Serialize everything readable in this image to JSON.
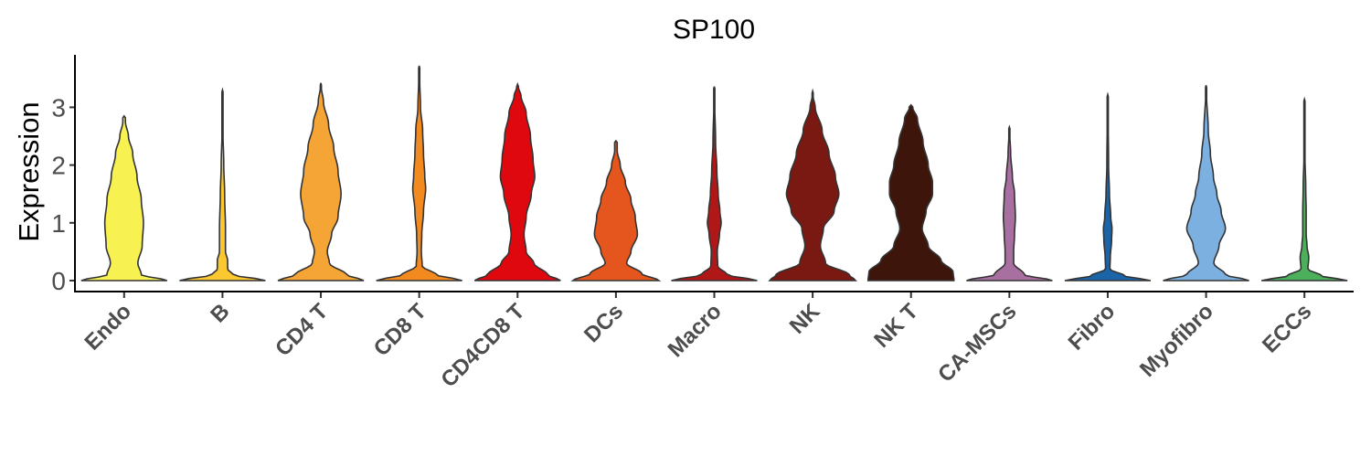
{
  "chart_data": {
    "type": "violin",
    "title": "SP100",
    "xlabel": "",
    "ylabel": "Expression",
    "ylim": [
      -0.2,
      3.8
    ],
    "yticks": [
      "0",
      "1",
      "2",
      "3"
    ],
    "grid": false,
    "legend": "none",
    "categories": [
      "Endo",
      "B",
      "CD4 T",
      "CD8 T",
      "CD4CD8 T",
      "DCs",
      "Macro",
      "NK",
      "NK T",
      "CA-MSCs",
      "Fibro",
      "Myofibro",
      "ECCs"
    ],
    "colors": [
      "#F7F152",
      "#FCC830",
      "#F5A535",
      "#F28A20",
      "#E0080F",
      "#E5551E",
      "#B01818",
      "#7A1812",
      "#3E150B",
      "#A870A0",
      "#1C64A8",
      "#7CB0E0",
      "#4CAF5C"
    ],
    "max_values": [
      2.85,
      3.3,
      3.42,
      3.72,
      3.4,
      2.42,
      3.36,
      3.28,
      3.04,
      2.66,
      3.22,
      3.38,
      3.14
    ],
    "profiles": [
      [
        [
          0,
          1.0
        ],
        [
          0.1,
          0.4
        ],
        [
          0.3,
          0.32
        ],
        [
          0.6,
          0.42
        ],
        [
          1.0,
          0.45
        ],
        [
          1.4,
          0.4
        ],
        [
          1.8,
          0.3
        ],
        [
          2.2,
          0.2
        ],
        [
          2.5,
          0.1
        ],
        [
          2.75,
          0.03
        ]
      ],
      [
        [
          0,
          1.0
        ],
        [
          0.1,
          0.25
        ],
        [
          0.2,
          0.12
        ],
        [
          0.35,
          0.12
        ],
        [
          0.5,
          0.07
        ],
        [
          0.9,
          0.07
        ],
        [
          1.5,
          0.05
        ],
        [
          2.0,
          0.03
        ],
        [
          2.6,
          0.01
        ]
      ],
      [
        [
          0,
          1.0
        ],
        [
          0.1,
          0.6
        ],
        [
          0.3,
          0.2
        ],
        [
          0.5,
          0.15
        ],
        [
          0.8,
          0.25
        ],
        [
          1.1,
          0.4
        ],
        [
          1.5,
          0.47
        ],
        [
          1.9,
          0.4
        ],
        [
          2.3,
          0.3
        ],
        [
          2.7,
          0.18
        ],
        [
          3.1,
          0.06
        ],
        [
          3.35,
          0.01
        ]
      ],
      [
        [
          0,
          1.0
        ],
        [
          0.1,
          0.4
        ],
        [
          0.25,
          0.07
        ],
        [
          0.5,
          0.05
        ],
        [
          0.8,
          0.06
        ],
        [
          1.2,
          0.1
        ],
        [
          1.6,
          0.15
        ],
        [
          1.8,
          0.13
        ],
        [
          2.2,
          0.1
        ],
        [
          2.6,
          0.08
        ],
        [
          3.0,
          0.03
        ],
        [
          3.6,
          0.005
        ]
      ],
      [
        [
          0,
          1.0
        ],
        [
          0.1,
          0.7
        ],
        [
          0.3,
          0.38
        ],
        [
          0.5,
          0.2
        ],
        [
          0.8,
          0.15
        ],
        [
          1.1,
          0.2
        ],
        [
          1.5,
          0.32
        ],
        [
          1.8,
          0.4
        ],
        [
          2.1,
          0.36
        ],
        [
          2.5,
          0.3
        ],
        [
          2.9,
          0.2
        ],
        [
          3.2,
          0.08
        ],
        [
          3.35,
          0.02
        ]
      ],
      [
        [
          0,
          1.0
        ],
        [
          0.12,
          0.6
        ],
        [
          0.3,
          0.25
        ],
        [
          0.5,
          0.35
        ],
        [
          0.8,
          0.5
        ],
        [
          1.1,
          0.45
        ],
        [
          1.4,
          0.35
        ],
        [
          1.7,
          0.22
        ],
        [
          2.0,
          0.1
        ],
        [
          2.25,
          0.03
        ]
      ],
      [
        [
          0,
          1.0
        ],
        [
          0.1,
          0.3
        ],
        [
          0.25,
          0.08
        ],
        [
          0.5,
          0.07
        ],
        [
          0.8,
          0.12
        ],
        [
          1.0,
          0.16
        ],
        [
          1.2,
          0.13
        ],
        [
          1.5,
          0.09
        ],
        [
          1.9,
          0.06
        ],
        [
          2.4,
          0.03
        ],
        [
          3.2,
          0.005
        ]
      ],
      [
        [
          0,
          1.0
        ],
        [
          0.1,
          0.85
        ],
        [
          0.3,
          0.3
        ],
        [
          0.6,
          0.18
        ],
        [
          0.9,
          0.25
        ],
        [
          1.2,
          0.5
        ],
        [
          1.5,
          0.61
        ],
        [
          1.8,
          0.53
        ],
        [
          2.2,
          0.38
        ],
        [
          2.6,
          0.22
        ],
        [
          3.0,
          0.06
        ],
        [
          3.2,
          0.01
        ]
      ],
      [
        [
          0,
          1.0
        ],
        [
          0.15,
          0.98
        ],
        [
          0.35,
          0.7
        ],
        [
          0.6,
          0.4
        ],
        [
          0.9,
          0.26
        ],
        [
          1.2,
          0.35
        ],
        [
          1.5,
          0.5
        ],
        [
          1.7,
          0.5
        ],
        [
          2.0,
          0.4
        ],
        [
          2.4,
          0.28
        ],
        [
          2.8,
          0.15
        ],
        [
          3.0,
          0.04
        ]
      ],
      [
        [
          0,
          1.0
        ],
        [
          0.1,
          0.35
        ],
        [
          0.3,
          0.1
        ],
        [
          0.5,
          0.1
        ],
        [
          0.8,
          0.12
        ],
        [
          1.1,
          0.14
        ],
        [
          1.5,
          0.12
        ],
        [
          1.8,
          0.07
        ],
        [
          2.2,
          0.03
        ],
        [
          2.6,
          0.005
        ]
      ],
      [
        [
          0,
          1.0
        ],
        [
          0.08,
          0.4
        ],
        [
          0.2,
          0.05
        ],
        [
          0.4,
          0.06
        ],
        [
          0.7,
          0.09
        ],
        [
          0.9,
          0.1
        ],
        [
          1.1,
          0.07
        ],
        [
          1.5,
          0.04
        ],
        [
          2.0,
          0.02
        ],
        [
          3.1,
          0.005
        ]
      ],
      [
        [
          0,
          1.0
        ],
        [
          0.1,
          0.45
        ],
        [
          0.3,
          0.18
        ],
        [
          0.6,
          0.3
        ],
        [
          0.9,
          0.45
        ],
        [
          1.2,
          0.35
        ],
        [
          1.5,
          0.25
        ],
        [
          1.8,
          0.17
        ],
        [
          2.2,
          0.1
        ],
        [
          2.6,
          0.05
        ],
        [
          3.3,
          0.005
        ]
      ],
      [
        [
          0,
          1.0
        ],
        [
          0.08,
          0.4
        ],
        [
          0.2,
          0.08
        ],
        [
          0.4,
          0.1
        ],
        [
          0.6,
          0.06
        ],
        [
          0.8,
          0.04
        ],
        [
          1.2,
          0.04
        ],
        [
          1.6,
          0.03
        ],
        [
          2.2,
          0.01
        ],
        [
          3.1,
          0.003
        ]
      ]
    ]
  }
}
